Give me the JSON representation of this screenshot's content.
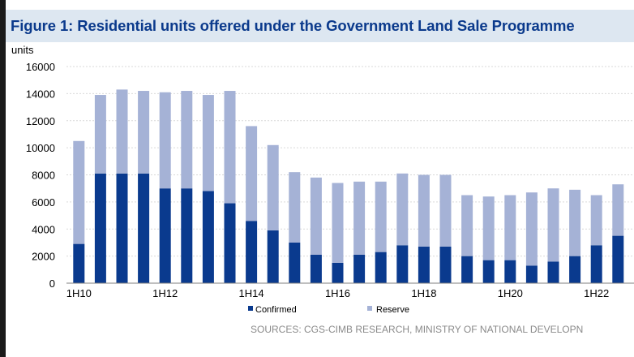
{
  "figure": {
    "title": "Figure 1: Residential units offered under the Government Land Sale Programme",
    "source": "SOURCES: CGS-CIMB RESEARCH, MINISTRY OF NATIONAL DEVELOPN"
  },
  "colors": {
    "confirmed": "#0a3a8e",
    "reserve": "#a5b2d6",
    "title_background": "#dde7f1",
    "title_text": "#0b3a8c",
    "gridline": "#d9d9d9"
  },
  "chart_data": {
    "type": "bar",
    "stacked": true,
    "ylabel": "units",
    "ylim": [
      0,
      16000
    ],
    "yticks": [
      0,
      2000,
      4000,
      6000,
      8000,
      10000,
      12000,
      14000,
      16000
    ],
    "grid": true,
    "legend_position": "bottom",
    "categories": [
      "1H10",
      "2H10",
      "1H11",
      "2H11",
      "1H12",
      "2H12",
      "1H13",
      "2H13",
      "1H14",
      "2H14",
      "1H15",
      "2H15",
      "1H16",
      "2H16",
      "1H17",
      "2H17",
      "1H18",
      "2H18",
      "1H19",
      "2H19",
      "1H20",
      "2H20",
      "1H21",
      "2H21",
      "1H22",
      "2H22"
    ],
    "x_tick_labels": [
      "1H10",
      "",
      "",
      "",
      "1H12",
      "",
      "",
      "",
      "1H14",
      "",
      "",
      "",
      "1H16",
      "",
      "",
      "",
      "1H18",
      "",
      "",
      "",
      "1H20",
      "",
      "",
      "",
      "1H22",
      ""
    ],
    "series": [
      {
        "name": "Confirmed",
        "values": [
          2900,
          8100,
          8100,
          8100,
          7000,
          7000,
          6800,
          5900,
          4600,
          3900,
          3000,
          2100,
          1500,
          2100,
          2300,
          2800,
          2700,
          2700,
          2000,
          1700,
          1700,
          1300,
          1600,
          2000,
          2800,
          3500
        ]
      },
      {
        "name": "Reserve",
        "values": [
          7600,
          5800,
          6200,
          6100,
          7100,
          7200,
          7100,
          8300,
          7000,
          6300,
          5200,
          5700,
          5900,
          5400,
          5200,
          5300,
          5300,
          5300,
          4500,
          4700,
          4800,
          5400,
          5400,
          4900,
          3700,
          3800
        ]
      }
    ]
  }
}
